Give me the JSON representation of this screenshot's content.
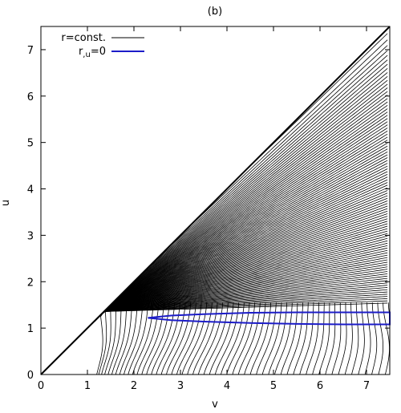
{
  "chart_data": {
    "type": "line",
    "title": "(b)",
    "xlabel": "v",
    "ylabel": "u",
    "xlim": [
      0,
      7.5
    ],
    "ylim": [
      0,
      7.5
    ],
    "xticks": [
      0,
      1,
      2,
      3,
      4,
      5,
      6,
      7
    ],
    "yticks": [
      0,
      1,
      2,
      3,
      4,
      5,
      6,
      7
    ],
    "xtick_labels": [
      "0",
      "1",
      "2",
      "3",
      "4",
      "5",
      "6",
      "7"
    ],
    "ytick_labels": [
      "0",
      "1",
      "2",
      "3",
      "4",
      "5",
      "6",
      "7"
    ],
    "legend_position": "top-left",
    "series": [
      {
        "name": "r=const.",
        "color": "#000000",
        "description_values": {
          "domain": "u <= v",
          "contour_count": 150,
          "lines_converge_at_v": 1.15
        }
      },
      {
        "name": "r,u=0",
        "color": "#1c1cc8",
        "curve": {
          "v": [
            2.3,
            2.8,
            3.5,
            4.5,
            5.5,
            6.5,
            7.5,
            7.5,
            6.5,
            5.5,
            4.5,
            3.5,
            2.8,
            2.3
          ],
          "u": [
            1.22,
            1.27,
            1.3,
            1.33,
            1.34,
            1.34,
            1.34,
            1.08,
            1.08,
            1.09,
            1.11,
            1.14,
            1.17,
            1.22
          ]
        }
      }
    ]
  },
  "legend": {
    "rconst_label": "r=const.",
    "ru_label_main": "r",
    "ru_label_sub": ",u",
    "ru_label_eq": "=0"
  }
}
